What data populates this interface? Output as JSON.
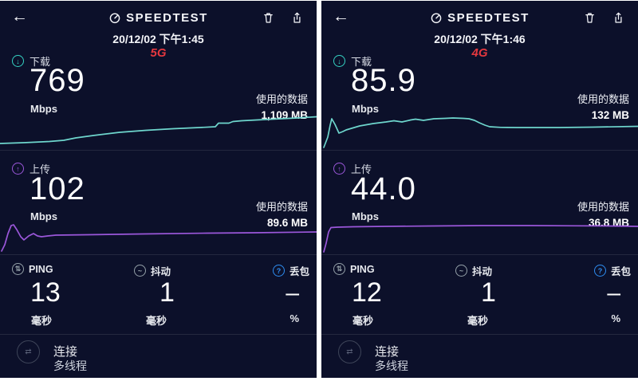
{
  "colors": {
    "background": "#0c102a",
    "teal": "#6ed6cd",
    "teal_icon": "#35d3c3",
    "purple": "#9b57da",
    "red": "#e5383f",
    "blue": "#2e8df0",
    "white": "#f4f5f9"
  },
  "icons": {
    "back": "←",
    "download": "↓",
    "upload": "↑",
    "ping": "⇅",
    "jitter": "~",
    "loss": "?",
    "connection": "⇄"
  },
  "shared": {
    "title": "SPEEDTEST",
    "download_label": "下载",
    "upload_label": "上传",
    "speed_unit": "Mbps",
    "used_label": "使用的数据",
    "ping_label": "PING",
    "jitter_label": "抖动",
    "loss_label": "丢包",
    "ms_unit": "毫秒",
    "pct_unit": "%",
    "connection_label": "连接",
    "connection_value": "多线程"
  },
  "panels": [
    {
      "datetime": "20/12/02 下午1:45",
      "network": "5G",
      "download": {
        "value": "769",
        "used": "1,109 MB",
        "spark": [
          [
            0,
            38
          ],
          [
            30,
            37
          ],
          [
            62,
            35.5
          ],
          [
            80,
            34
          ],
          [
            95,
            31
          ],
          [
            117,
            28
          ],
          [
            150,
            24
          ],
          [
            183,
            21.5
          ],
          [
            217,
            19.5
          ],
          [
            250,
            18
          ],
          [
            270,
            17
          ],
          [
            274,
            12.5
          ],
          [
            287,
            12.5
          ],
          [
            292,
            10.5
          ],
          [
            303,
            9.5
          ],
          [
            322,
            8.5
          ],
          [
            352,
            7
          ],
          [
            372,
            6
          ],
          [
            397,
            4.5
          ]
        ]
      },
      "upload": {
        "value": "102",
        "used": "89.6 MB",
        "spark": [
          [
            2,
            42
          ],
          [
            6,
            34
          ],
          [
            10,
            20
          ],
          [
            14,
            10
          ],
          [
            17,
            9
          ],
          [
            21,
            15
          ],
          [
            26,
            24
          ],
          [
            30,
            28
          ],
          [
            36,
            23
          ],
          [
            42,
            20
          ],
          [
            47,
            23
          ],
          [
            52,
            24
          ],
          [
            60,
            23
          ],
          [
            70,
            22
          ],
          [
            110,
            21.5
          ],
          [
            180,
            20.5
          ],
          [
            260,
            19.5
          ],
          [
            320,
            19
          ],
          [
            397,
            18
          ]
        ]
      },
      "ping": "13",
      "jitter": "1",
      "loss": "–"
    },
    {
      "datetime": "20/12/02 下午1:46",
      "network": "4G",
      "download": {
        "value": "85.9",
        "used": "132 MB",
        "spark": [
          [
            3,
            43
          ],
          [
            8,
            30
          ],
          [
            11,
            15
          ],
          [
            13,
            7
          ],
          [
            17,
            14
          ],
          [
            22,
            25
          ],
          [
            27,
            23
          ],
          [
            31,
            21
          ],
          [
            48,
            16
          ],
          [
            65,
            13
          ],
          [
            81,
            11
          ],
          [
            91,
            9.5
          ],
          [
            101,
            11
          ],
          [
            112,
            8.5
          ],
          [
            118,
            7.5
          ],
          [
            128,
            9
          ],
          [
            141,
            7
          ],
          [
            155,
            6.5
          ],
          [
            165,
            6
          ],
          [
            178,
            6.5
          ],
          [
            185,
            7
          ],
          [
            192,
            9
          ],
          [
            198,
            12
          ],
          [
            205,
            15
          ],
          [
            211,
            17
          ],
          [
            225,
            17.8
          ],
          [
            245,
            18
          ],
          [
            298,
            18
          ],
          [
            340,
            17.5
          ],
          [
            397,
            16.5
          ]
        ]
      },
      "upload": {
        "value": "44.0",
        "used": "36.8 MB",
        "spark": [
          [
            3,
            43
          ],
          [
            6,
            32
          ],
          [
            9,
            18
          ],
          [
            12,
            12.5
          ],
          [
            20,
            12
          ],
          [
            40,
            11.5
          ],
          [
            80,
            11
          ],
          [
            140,
            10.5
          ],
          [
            200,
            10
          ],
          [
            260,
            10
          ],
          [
            320,
            10.3
          ],
          [
            360,
            10.5
          ],
          [
            397,
            11
          ]
        ]
      },
      "ping": "12",
      "jitter": "1",
      "loss": "–"
    }
  ]
}
